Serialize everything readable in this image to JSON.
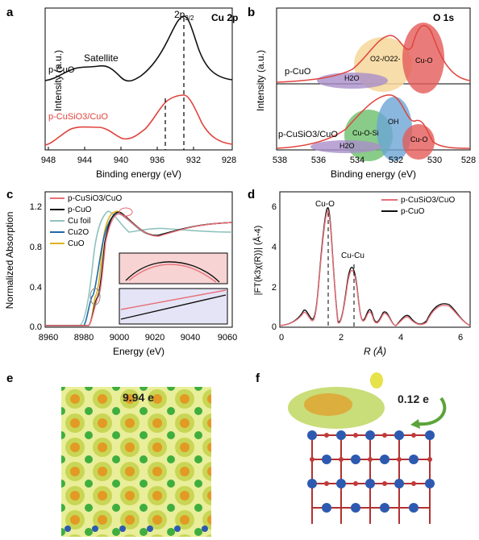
{
  "panels": {
    "a": {
      "letter": "a",
      "element_label": "Cu 2p",
      "peak_label": "2p",
      "peak_sub": "3/2",
      "satellite_label": "Satellite",
      "ylabel": "Intensity (a.u.)",
      "xlabel": "Binding energy (eV)",
      "xticks": [
        "948",
        "944",
        "940",
        "936",
        "932",
        "928"
      ],
      "series": [
        {
          "name": "p-CuO",
          "color": "#111111"
        },
        {
          "name": "p-CuSiO3/CuO",
          "color": "#e0443d"
        }
      ]
    },
    "b": {
      "letter": "b",
      "element_label": "O 1s",
      "ylabel": "Intensity (a.u.)",
      "xlabel": "Binding energy (eV)",
      "xticks": [
        "538",
        "536",
        "534",
        "532",
        "530",
        "528"
      ],
      "top_sample": "p-CuO",
      "bottom_sample": "p-CuSiO3/CuO",
      "top_components": [
        "H2O",
        "O2-/O22-",
        "Cu-O"
      ],
      "bottom_components": [
        "H2O",
        "Cu-O-Si",
        "OH",
        "Cu-O"
      ]
    },
    "c": {
      "letter": "c",
      "ylabel": "Normalized Absorption",
      "xlabel": "Energy (eV)",
      "xticks": [
        "8960",
        "8980",
        "9000",
        "9020",
        "9040",
        "9060"
      ],
      "yticks": [
        "0.0",
        "0.4",
        "0.8",
        "1.2"
      ],
      "legend": [
        {
          "name": "p-CuSiO3/CuO",
          "color": "#e86f78"
        },
        {
          "name": "p-CuO",
          "color": "#111111"
        },
        {
          "name": "Cu foil",
          "color": "#8fc3bd"
        },
        {
          "name": "Cu2O",
          "color": "#1f6aa8"
        },
        {
          "name": "CuO",
          "color": "#e0b21e"
        }
      ]
    },
    "d": {
      "letter": "d",
      "ylabel": "|FT(k3χ(R))| (Å-4)",
      "xlabel": "R (Å)",
      "xticks": [
        "0",
        "2",
        "4",
        "6"
      ],
      "yticks": [
        "0",
        "2",
        "4",
        "6"
      ],
      "peak1_label": "Cu-O",
      "peak2_label": "Cu-Cu",
      "legend": [
        {
          "name": "p-CuSiO3/CuO",
          "color": "#e86f78"
        },
        {
          "name": "p-CuO",
          "color": "#111111"
        }
      ]
    },
    "e": {
      "letter": "e",
      "charge_label": "9.94 e"
    },
    "f": {
      "letter": "f",
      "charge_label": "0.12 e"
    }
  }
}
